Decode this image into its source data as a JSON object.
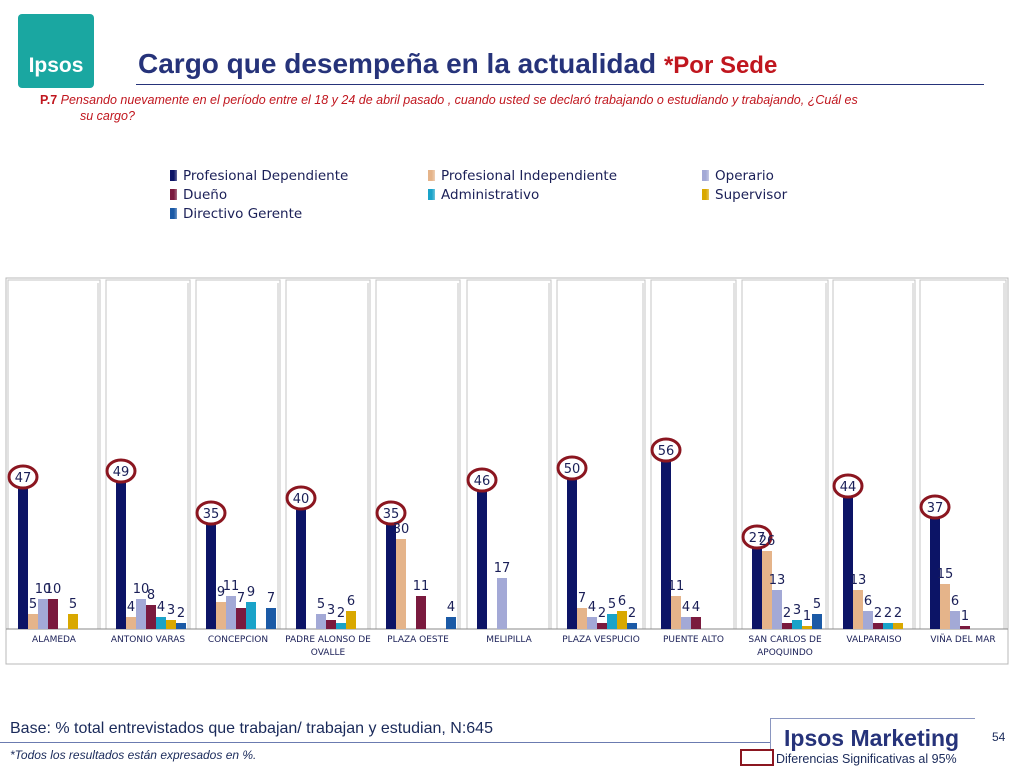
{
  "header": {
    "logo_text": "Ipsos",
    "title": "Cargo que desempeña en la actualidad",
    "title_suffix": "*Por Sede",
    "question_label": "P.7",
    "question_line1": "Pensando nuevamente en el período entre el 18 y 24 de abril pasado , cuando usted se declaró trabajando o estudiando y trabajando, ¿Cuál es",
    "question_line2": "su cargo?"
  },
  "chart_data": {
    "type": "bar",
    "title": "Cargo que desempeña en la actualidad *Por Sede",
    "categories": [
      "ALAMEDA",
      "ANTONIO VARAS",
      "CONCEPCION",
      "PADRE ALONSO DE OVALLE",
      "PLAZA OESTE",
      "MELIPILLA",
      "PLAZA VESPUCIO",
      "PUENTE ALTO",
      "SAN CARLOS DE APOQUINDO",
      "VALPARAISO",
      "VIÑA DEL MAR"
    ],
    "category_lines": [
      [
        "ALAMEDA"
      ],
      [
        "ANTONIO VARAS"
      ],
      [
        "CONCEPCION"
      ],
      [
        "PADRE ALONSO DE",
        "OVALLE"
      ],
      [
        "PLAZA OESTE"
      ],
      [
        "MELIPILLA"
      ],
      [
        "PLAZA VESPUCIO"
      ],
      [
        "PUENTE ALTO"
      ],
      [
        "SAN CARLOS DE",
        "APOQUINDO"
      ],
      [
        "VALPARAISO"
      ],
      [
        "VIÑA DEL MAR"
      ]
    ],
    "series": [
      {
        "name": "Profesional Dependiente",
        "color": "#0c1466",
        "values": [
          47,
          49,
          35,
          40,
          35,
          46,
          50,
          56,
          27,
          44,
          37
        ]
      },
      {
        "name": "Profesional Independiente",
        "color": "#e5b48a",
        "values": [
          5,
          4,
          9,
          null,
          30,
          null,
          7,
          11,
          26,
          13,
          15
        ]
      },
      {
        "name": "Operario",
        "color": "#a3a9d6",
        "values": [
          10,
          10,
          11,
          5,
          null,
          17,
          4,
          4,
          13,
          6,
          6
        ]
      },
      {
        "name": "Dueño",
        "color": "#7a1a3e",
        "values": [
          10,
          8,
          7,
          3,
          11,
          null,
          2,
          4,
          2,
          2,
          1
        ]
      },
      {
        "name": "Administrativo",
        "color": "#1aa3c9",
        "values": [
          null,
          4,
          9,
          2,
          null,
          null,
          5,
          null,
          3,
          2,
          null
        ]
      },
      {
        "name": "Supervisor",
        "color": "#d9a800",
        "values": [
          5,
          3,
          null,
          6,
          null,
          null,
          6,
          null,
          1,
          2,
          null
        ]
      },
      {
        "name": "Directivo Gerente",
        "color": "#1b5aa6",
        "values": [
          null,
          2,
          7,
          null,
          4,
          null,
          2,
          null,
          5,
          null,
          null
        ]
      }
    ],
    "circled": "Profesional Dependiente",
    "ylim": [
      0,
      60
    ],
    "legend_position": "top",
    "grid": false
  },
  "footer": {
    "base": "Base: % total entrevistados que trabajan/ trabajan y estudian, N:645",
    "note": "*Todos los resultados están expresados en %.",
    "brand": "Ipsos Marketing",
    "page": "54",
    "sig_legend": "Diferencias Significativas al 95%"
  },
  "colors": {
    "title": "#26337a",
    "accent_red": "#c0161e",
    "circle": "#8b1620"
  }
}
